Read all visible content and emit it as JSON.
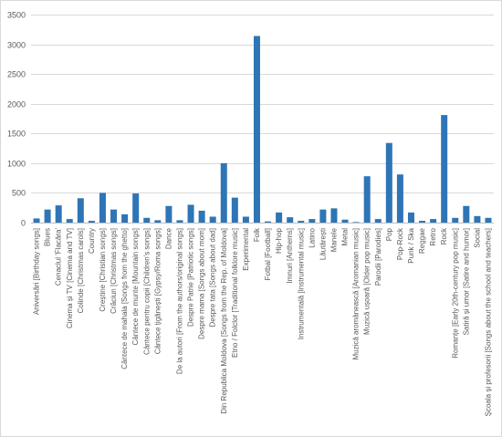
{
  "chart_data": {
    "type": "bar",
    "title": "",
    "xlabel": "",
    "ylabel": "",
    "ylim": [
      0,
      3500
    ],
    "yticks": [
      0,
      500,
      1000,
      1500,
      2000,
      2500,
      3000,
      3500
    ],
    "grid": true,
    "legend": "none",
    "bar_color": "#2e75b6",
    "categories": [
      "Aniversări [Birthday songs]",
      "Blues",
      "Cenaclul 'Flacăra'",
      "Cinema și TV [Cinema and TV]",
      "Colinde [Christmas carols]",
      "Country",
      "Creștine [Christian songs]",
      "Crăciun [Christmas songs]",
      "Cântece de mahala [Songs from the ghetto]",
      "Cântece de munte [Mountain songs]",
      "Cântece pentru copii [Children's songs]",
      "Cântece țigănești [Gypsy/Roma songs]",
      "Dance",
      "De la autori [From the authors/original songs]",
      "Despre Patrie [Patriotic songs]",
      "Despre mama [Songs about mom]",
      "Despre tata [Songs about dad]",
      "Din Republica Moldova [Songs from the Rep. of Moldova]",
      "Etno / Folclor [Traditional folklore music]",
      "Experimental",
      "Folk",
      "Fotbal [Football]",
      "Hip-hop",
      "Imnuri [Anthems]",
      "Instrumentală [Instrumental music]",
      "Latino",
      "Lăutărești",
      "Manele",
      "Metal",
      "Muzică aromânească [Aromanian music]",
      "Muzică ușoară [Older pop music]",
      "Parodii [Parodies]",
      "Pop",
      "Pop-Rock",
      "Punk / Ska",
      "Reggae",
      "Retro",
      "Rock",
      "Romanțe [Early 20th-century pop music]",
      "Satiră și umor [Satire and humor]",
      "Social",
      "Școala și profesorii [Songs about the school and teachers]"
    ],
    "values": [
      70,
      220,
      290,
      60,
      410,
      30,
      500,
      220,
      140,
      490,
      80,
      40,
      280,
      40,
      300,
      200,
      100,
      1000,
      420,
      100,
      3140,
      20,
      170,
      90,
      30,
      60,
      220,
      240,
      50,
      10,
      780,
      60,
      1340,
      810,
      170,
      30,
      60,
      1810,
      80,
      280,
      110,
      80
    ]
  }
}
